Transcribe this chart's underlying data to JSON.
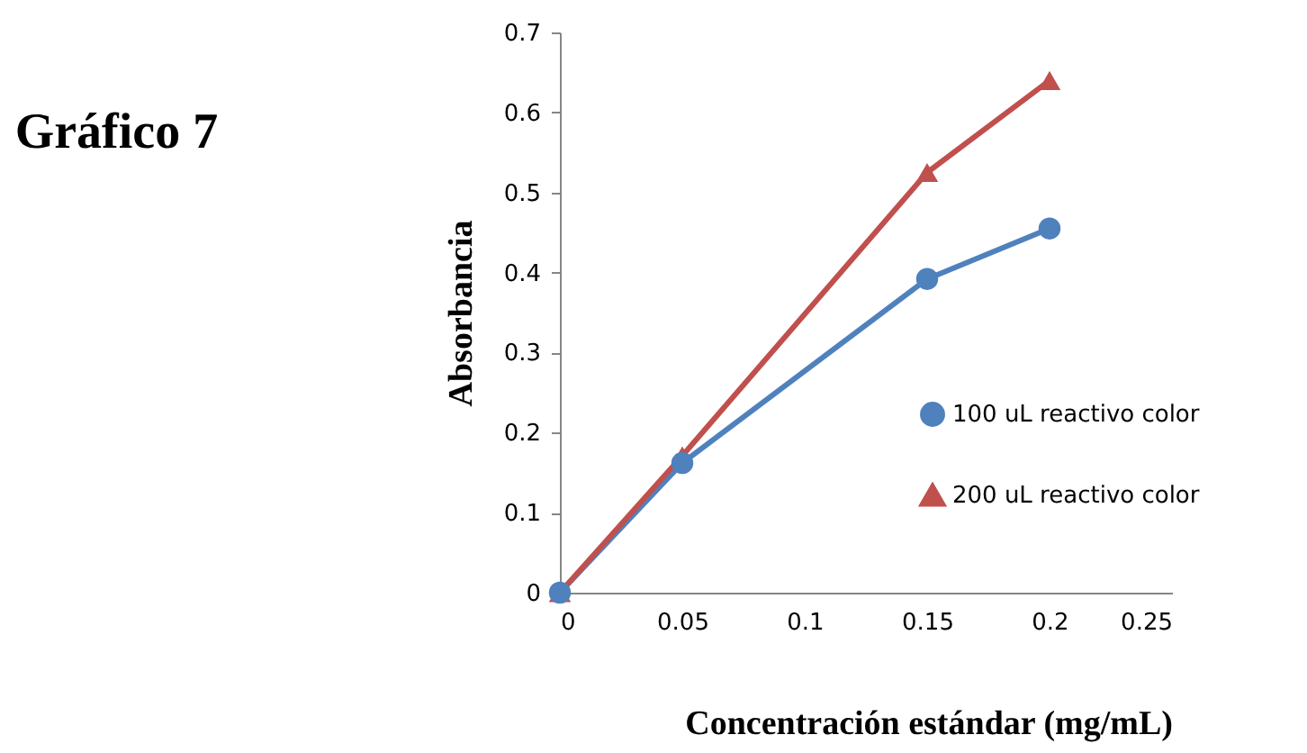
{
  "chart_data": {
    "type": "line",
    "title": "Gráfico 7",
    "xlabel": "Concentración estándar (mg/mL)",
    "ylabel": "Absorbancia",
    "x": [
      0,
      0.05,
      0.15,
      0.2
    ],
    "series": [
      {
        "name": "100 uL reactivo color",
        "color": "#4f81bd",
        "marker": "circle",
        "values": [
          0,
          0.162,
          0.392,
          0.455
        ]
      },
      {
        "name": "200 uL reactivo color",
        "color": "#c0504d",
        "marker": "triangle",
        "values": [
          0,
          0.171,
          0.525,
          0.64
        ]
      }
    ],
    "xlim": [
      0,
      0.25
    ],
    "xticks": [
      0,
      0.05,
      0.1,
      0.15,
      0.2,
      0.25
    ],
    "ylim": [
      0,
      0.7
    ],
    "yticks": [
      0,
      0.1,
      0.2,
      0.3,
      0.4,
      0.5,
      0.6,
      0.7
    ],
    "grid": false,
    "legend": "right",
    "line_style": "solid"
  }
}
